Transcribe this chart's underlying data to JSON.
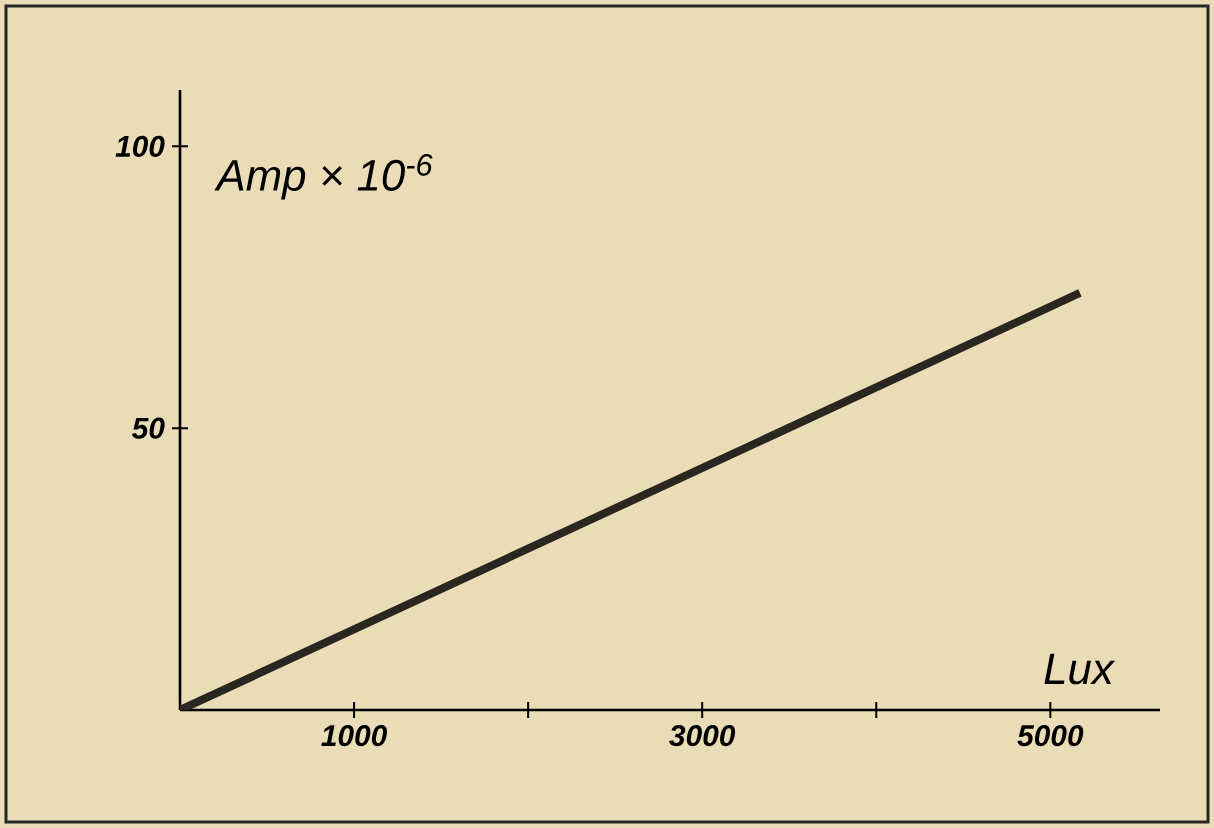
{
  "chart_data": {
    "type": "line",
    "xlabel": "Lux",
    "ylabel": "Amp × 10$^{-6}$",
    "x": [
      0,
      5170
    ],
    "series": [
      {
        "color": "#2a2620",
        "values": [
          0,
          74
        ]
      }
    ],
    "xlim": [
      0,
      5630
    ],
    "ylim": [
      0,
      110
    ],
    "xticks": [
      1000,
      {
        "value": 2000,
        "label": null
      },
      3000,
      {
        "value": 4000,
        "label": null
      },
      5000
    ],
    "yticks": [
      50,
      100
    ],
    "grid": false,
    "marker": "none",
    "line_style": "solid"
  }
}
